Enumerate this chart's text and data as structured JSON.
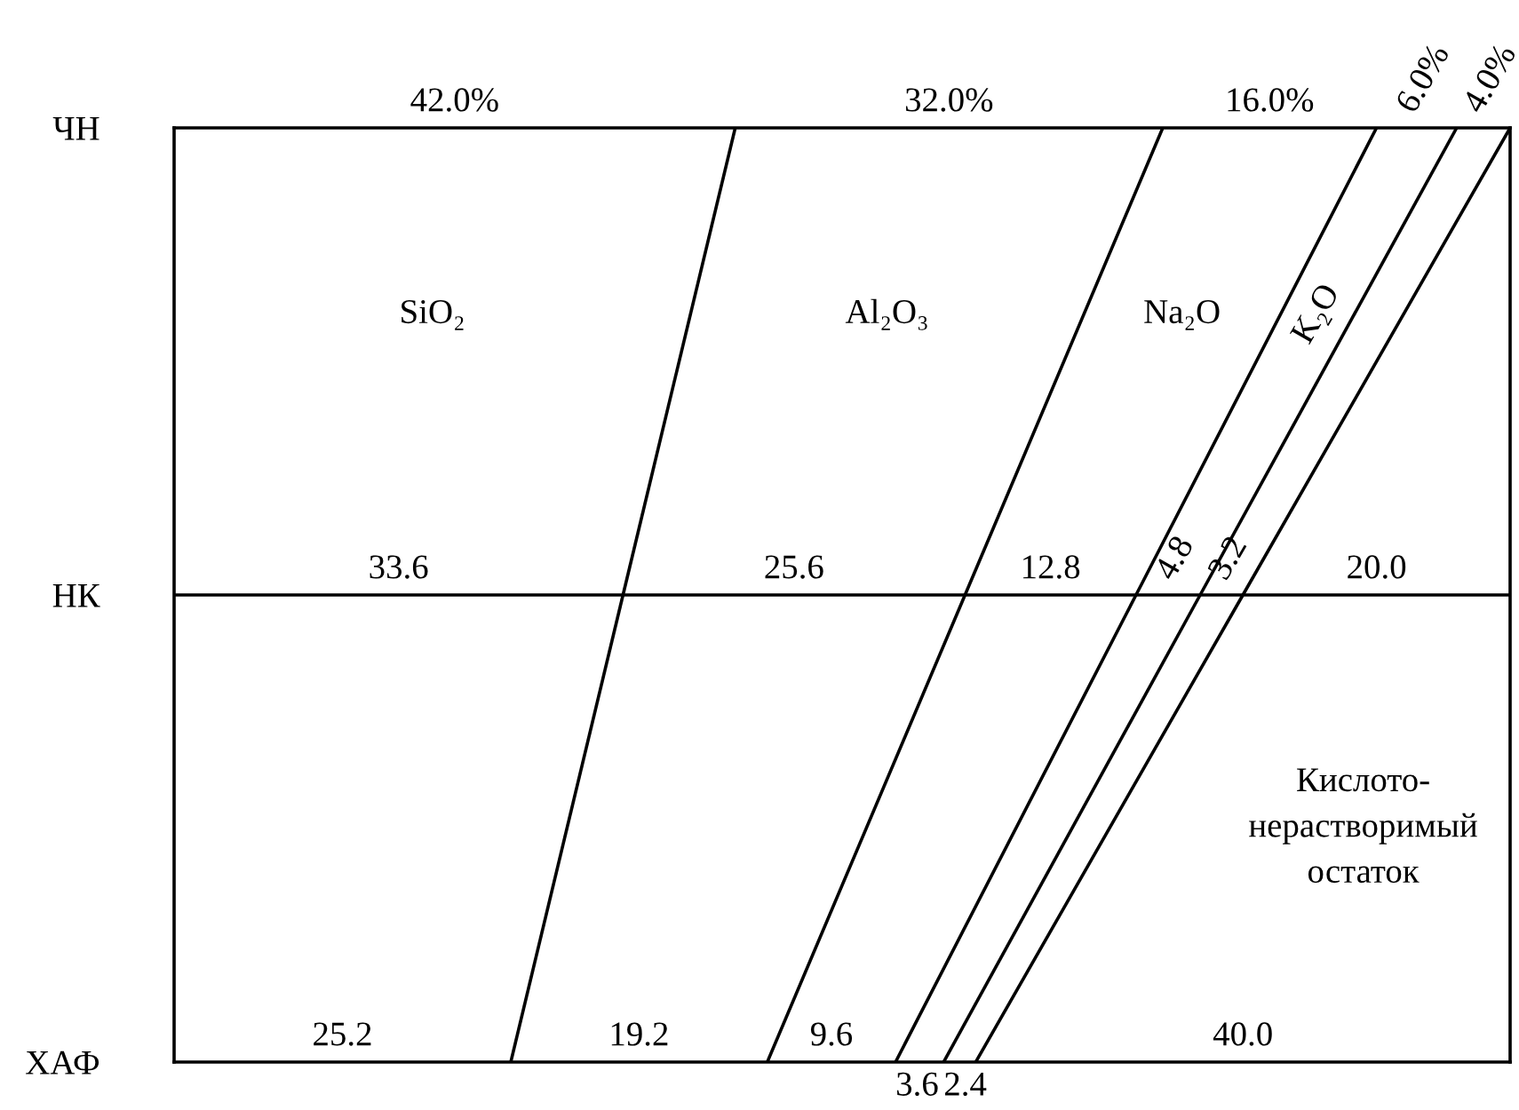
{
  "chart_data": {
    "type": "other",
    "categories": [
      "ЧН",
      "НК",
      "ХАФ"
    ],
    "series": [
      {
        "name": "SiO₂",
        "values": [
          42.0,
          33.6,
          25.2
        ],
        "value_labels": [
          "42.0%",
          "33.6",
          "25.2"
        ]
      },
      {
        "name": "Al₂O₃",
        "values": [
          32.0,
          25.6,
          19.2
        ],
        "value_labels": [
          "32.0%",
          "25.6",
          "19.2"
        ]
      },
      {
        "name": "Na₂O",
        "values": [
          16.0,
          12.8,
          9.6
        ],
        "value_labels": [
          "16.0%",
          "12.8",
          "9.6"
        ]
      },
      {
        "name": "K₂O",
        "values": [
          6.0,
          4.8,
          3.6
        ],
        "value_labels": [
          "6.0%",
          "4.8",
          "3.6"
        ]
      },
      {
        "values": [
          4.0,
          3.2,
          2.4
        ],
        "value_labels": [
          "4.0%",
          "3.2",
          "2.4"
        ]
      },
      {
        "name": "Кислото-\nнерастворимый\nостаток",
        "values": [
          null,
          20.0,
          40.0
        ],
        "value_labels": [
          null,
          "20.0",
          "40.0"
        ]
      }
    ]
  }
}
